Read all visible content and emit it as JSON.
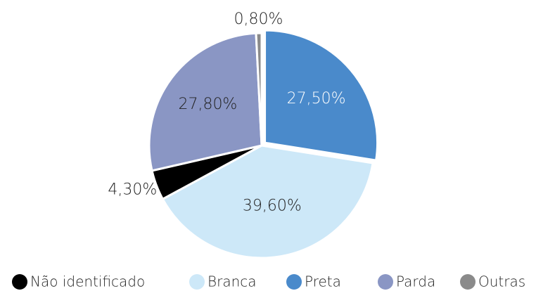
{
  "chart_data": {
    "type": "pie",
    "categories": [
      "Não identificado",
      "Branca",
      "Preta",
      "Parda",
      "Outras"
    ],
    "values": [
      4.3,
      39.6,
      27.5,
      27.8,
      0.8
    ],
    "value_labels": [
      "4,30%",
      "39,60%",
      "27,50%",
      "27,80%",
      "0,80%"
    ],
    "colors": [
      "#000000",
      "#cde8f8",
      "#4a8acb",
      "#8a96c4",
      "#8a8a8a"
    ],
    "label_colors": [
      "#222222",
      "#222222",
      "#ffffff",
      "#222222",
      "#222222"
    ],
    "legend": "bottom"
  }
}
